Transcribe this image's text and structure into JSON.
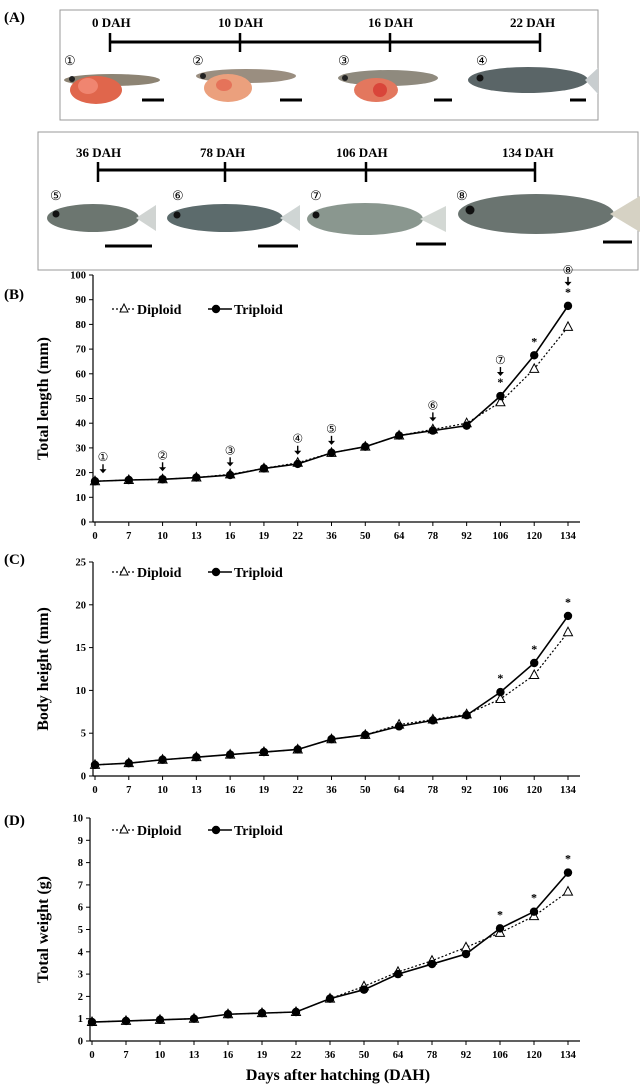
{
  "figure": {
    "panel_labels": [
      "(A)",
      "(B)",
      "(C)",
      "(D)"
    ],
    "panel_a": {
      "timeline_top": [
        "0 DAH",
        "10 DAH",
        "16 DAH",
        "22 DAH"
      ],
      "timeline_bottom": [
        "36 DAH",
        "78 DAH",
        "106 DAH",
        "134 DAH"
      ],
      "stage_markers": [
        "①",
        "②",
        "③",
        "④",
        "⑤",
        "⑥",
        "⑦",
        "⑧"
      ]
    },
    "x_axis_title": "Days after hatching (DAH)"
  },
  "colors": {
    "triploid": "#000000",
    "diploid_fill": "#ffffff",
    "fish_body": "#7d8a88",
    "yolk": "#e8684f"
  },
  "chart_data": [
    {
      "type": "line",
      "panel": "(B)",
      "ylabel": "Total length (mm)",
      "ylim": [
        0,
        100
      ],
      "yticks": [
        "0",
        "10",
        "20",
        "30",
        "40",
        "50",
        "60",
        "70",
        "80",
        "90",
        "100"
      ],
      "categories": [
        "0",
        "7",
        "10",
        "13",
        "16",
        "19",
        "22",
        "36",
        "50",
        "64",
        "78",
        "92",
        "106",
        "120",
        "134"
      ],
      "legend": [
        "Diploid",
        "Triploid"
      ],
      "series": [
        {
          "name": "Diploid",
          "marker": "open-triangle",
          "line": "dotted",
          "values": [
            16.5,
            17,
            17.3,
            18,
            19.3,
            21.7,
            24,
            28,
            30.5,
            35,
            37.5,
            40,
            48.5,
            62,
            79
          ]
        },
        {
          "name": "Triploid",
          "marker": "filled-circle",
          "line": "solid",
          "values": [
            16.5,
            17,
            17.3,
            18,
            19,
            21.7,
            23.5,
            28,
            30.5,
            35,
            37,
            39,
            51,
            67.5,
            87.5
          ]
        }
      ],
      "significance": [
        {
          "x": "106",
          "label": "*"
        },
        {
          "x": "120",
          "label": "*"
        },
        {
          "x": "134",
          "label": "*"
        }
      ],
      "stage_arrows": [
        {
          "x": "0",
          "label": "①"
        },
        {
          "x": "10",
          "label": "②"
        },
        {
          "x": "16",
          "label": "③"
        },
        {
          "x": "22",
          "label": "④"
        },
        {
          "x": "36",
          "label": "⑤"
        },
        {
          "x": "78",
          "label": "⑥"
        },
        {
          "x": "106",
          "label": "⑦"
        },
        {
          "x": "134",
          "label": "⑧"
        }
      ]
    },
    {
      "type": "line",
      "panel": "(C)",
      "ylabel": "Body height (mm)",
      "ylim": [
        0,
        25
      ],
      "yticks": [
        "0",
        "5",
        "10",
        "15",
        "20",
        "25"
      ],
      "categories": [
        "0",
        "7",
        "10",
        "13",
        "16",
        "19",
        "22",
        "36",
        "50",
        "64",
        "78",
        "92",
        "106",
        "120",
        "134"
      ],
      "legend": [
        "Diploid",
        "Triploid"
      ],
      "series": [
        {
          "name": "Diploid",
          "marker": "open-triangle",
          "line": "dotted",
          "values": [
            1.3,
            1.5,
            1.9,
            2.2,
            2.5,
            2.8,
            3.1,
            4.3,
            4.8,
            6.0,
            6.6,
            7.2,
            9.0,
            11.8,
            16.8
          ]
        },
        {
          "name": "Triploid",
          "marker": "filled-circle",
          "line": "solid",
          "values": [
            1.3,
            1.5,
            1.9,
            2.2,
            2.5,
            2.8,
            3.1,
            4.3,
            4.8,
            5.8,
            6.5,
            7.1,
            9.8,
            13.2,
            18.7
          ]
        }
      ],
      "significance": [
        {
          "x": "106",
          "label": "*"
        },
        {
          "x": "120",
          "label": "*"
        },
        {
          "x": "134",
          "label": "*"
        }
      ]
    },
    {
      "type": "line",
      "panel": "(D)",
      "ylabel": "Total weight (g)",
      "ylim": [
        0,
        10
      ],
      "yticks": [
        "0",
        "1",
        "2",
        "3",
        "4",
        "5",
        "6",
        "7",
        "8",
        "9",
        "10"
      ],
      "categories": [
        "0",
        "7",
        "10",
        "13",
        "16",
        "19",
        "22",
        "36",
        "50",
        "64",
        "78",
        "92",
        "106",
        "120",
        "134"
      ],
      "legend": [
        "Diploid",
        "Triploid"
      ],
      "series": [
        {
          "name": "Diploid",
          "marker": "open-triangle",
          "line": "dotted",
          "values": [
            0.85,
            0.9,
            0.95,
            1.0,
            1.2,
            1.25,
            1.3,
            1.9,
            2.45,
            3.1,
            3.6,
            4.2,
            4.85,
            5.6,
            6.7
          ]
        },
        {
          "name": "Triploid",
          "marker": "filled-circle",
          "line": "solid",
          "values": [
            0.85,
            0.9,
            0.95,
            1.0,
            1.2,
            1.25,
            1.3,
            1.9,
            2.3,
            3.0,
            3.45,
            3.9,
            5.05,
            5.8,
            7.55
          ]
        }
      ],
      "significance": [
        {
          "x": "106",
          "label": "*"
        },
        {
          "x": "120",
          "label": "*"
        },
        {
          "x": "134",
          "label": "*"
        }
      ]
    }
  ]
}
